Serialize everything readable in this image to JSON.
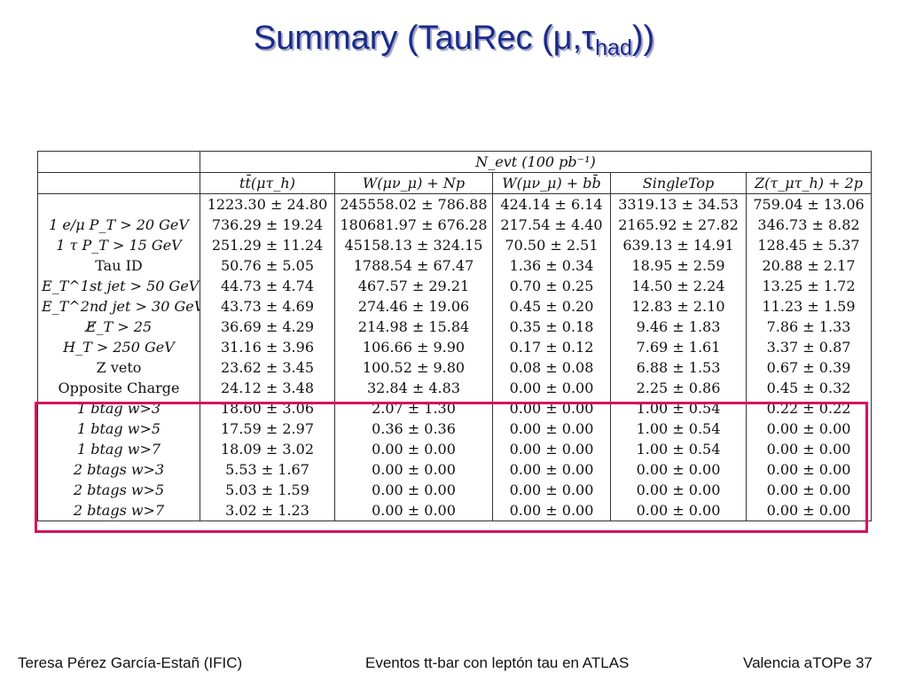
{
  "slide": {
    "title_main": "Summary (TauRec (μ,τ",
    "title_sub": "had",
    "title_end": "))"
  },
  "table": {
    "group_header": "N_evt (100 pb⁻¹)",
    "columns": [
      "tt̄(μτ_h)",
      "W(μν_μ) + Np",
      "W(μν_μ) + bb̄",
      "SingleTop",
      "Z(τ_μτ_h) + 2p"
    ],
    "rows": [
      {
        "label": "",
        "values": [
          "1223.30 ± 24.80",
          "245558.02 ± 786.88",
          "424.14 ± 6.14",
          "3319.13 ± 34.53",
          "759.04 ± 13.06"
        ]
      },
      {
        "label": "1 e/μ P_T > 20 GeV",
        "values": [
          "736.29 ± 19.24",
          "180681.97 ± 676.28",
          "217.54 ± 4.40",
          "2165.92 ± 27.82",
          "346.73 ± 8.82"
        ]
      },
      {
        "label": "1 τ P_T > 15 GeV",
        "values": [
          "251.29 ± 11.24",
          "45158.13 ± 324.15",
          "70.50 ± 2.51",
          "639.13 ± 14.91",
          "128.45 ± 5.37"
        ]
      },
      {
        "label": "Tau ID",
        "values": [
          "50.76 ± 5.05",
          "1788.54 ± 67.47",
          "1.36 ± 0.34",
          "18.95 ± 2.59",
          "20.88 ± 2.17"
        ]
      },
      {
        "label": "E_T^1st jet > 50 GeV",
        "values": [
          "44.73 ± 4.74",
          "467.57 ± 29.21",
          "0.70 ± 0.25",
          "14.50 ± 2.24",
          "13.25 ± 1.72"
        ]
      },
      {
        "label": "E_T^2nd jet > 30 GeV",
        "values": [
          "43.73 ± 4.69",
          "274.46 ± 19.06",
          "0.45 ± 0.20",
          "12.83 ± 2.10",
          "11.23 ± 1.59"
        ]
      },
      {
        "label": "E̸_T > 25",
        "values": [
          "36.69 ± 4.29",
          "214.98 ± 15.84",
          "0.35 ± 0.18",
          "9.46 ± 1.83",
          "7.86 ± 1.33"
        ]
      },
      {
        "label": "H_T > 250 GeV",
        "values": [
          "31.16 ± 3.96",
          "106.66 ± 9.90",
          "0.17 ± 0.12",
          "7.69 ± 1.61",
          "3.37 ± 0.87"
        ]
      },
      {
        "label": "Z veto",
        "values": [
          "23.62 ± 3.45",
          "100.52 ± 9.80",
          "0.08 ± 0.08",
          "6.88 ± 1.53",
          "0.67 ± 0.39"
        ]
      },
      {
        "label": "Opposite Charge",
        "values": [
          "24.12 ± 3.48",
          "32.84 ± 4.83",
          "0.00 ± 0.00",
          "2.25 ± 0.86",
          "0.45 ± 0.32"
        ]
      },
      {
        "label": "1 btag w>3",
        "values": [
          "18.60 ± 3.06",
          "2.07 ± 1.30",
          "0.00 ± 0.00",
          "1.00 ± 0.54",
          "0.22 ± 0.22"
        ]
      },
      {
        "label": "1 btag w>5",
        "values": [
          "17.59 ± 2.97",
          "0.36 ± 0.36",
          "0.00 ± 0.00",
          "1.00 ± 0.54",
          "0.00 ± 0.00"
        ]
      },
      {
        "label": "1 btag w>7",
        "values": [
          "18.09 ± 3.02",
          "0.00 ± 0.00",
          "0.00 ± 0.00",
          "1.00 ± 0.54",
          "0.00 ± 0.00"
        ]
      },
      {
        "label": "2 btags w>3",
        "values": [
          "5.53 ± 1.67",
          "0.00 ± 0.00",
          "0.00 ± 0.00",
          "0.00 ± 0.00",
          "0.00 ± 0.00"
        ]
      },
      {
        "label": "2 btags w>5",
        "values": [
          "5.03 ± 1.59",
          "0.00 ± 0.00",
          "0.00 ± 0.00",
          "0.00 ± 0.00",
          "0.00 ± 0.00"
        ]
      },
      {
        "label": "2 btags w>7",
        "values": [
          "3.02 ± 1.23",
          "0.00 ± 0.00",
          "0.00 ± 0.00",
          "0.00 ± 0.00",
          "0.00 ± 0.00"
        ]
      }
    ]
  },
  "highlight_color": "#d4145a",
  "title_color": "#1a2a8c",
  "footer": {
    "left": "Teresa Pérez García-Estañ (IFIC)",
    "middle": "Eventos tt-bar con leptón tau en ATLAS",
    "right": "Valencia aTOPe  37"
  }
}
